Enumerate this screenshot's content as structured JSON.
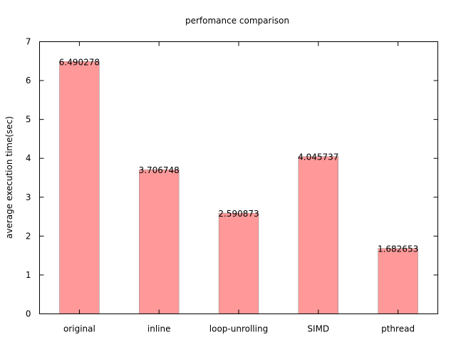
{
  "chart_data": {
    "type": "bar",
    "title": "perfomance comparison",
    "xlabel": "",
    "ylabel": "average execution time(sec)",
    "ylim": [
      0,
      7
    ],
    "yticks": [
      0,
      1,
      2,
      3,
      4,
      5,
      6,
      7
    ],
    "grid": false,
    "legend": "none",
    "bar_color": "#ff9999",
    "categories": [
      "original",
      "inline",
      "loop-unrolling",
      "SIMD",
      "pthread"
    ],
    "values": [
      6.490278,
      3.706748,
      2.590873,
      4.045737,
      1.682653
    ],
    "data_labels": [
      "6.490278",
      "3.706748",
      "2.590873",
      "4.045737",
      "1.682653"
    ]
  }
}
